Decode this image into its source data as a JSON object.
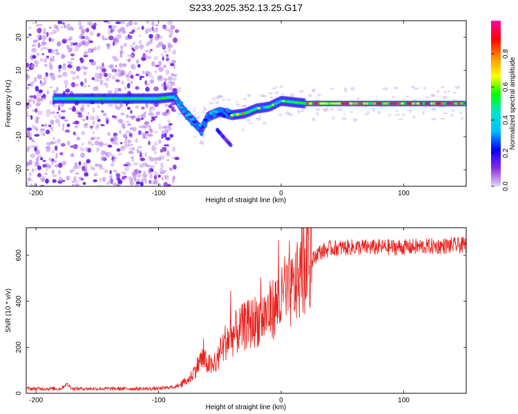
{
  "title": "S233.2025.352.13.25.G17",
  "chart_data": [
    {
      "type": "heatmap",
      "title": "S233.2025.352.13.25.G17",
      "xlabel": "Height of straight line (km)",
      "ylabel": "Frequency (Hz)",
      "xlim": [
        -208,
        151
      ],
      "ylim": [
        -25,
        25
      ],
      "xticks": [
        -200,
        -100,
        0,
        100
      ],
      "yticks": [
        -20,
        -10,
        0,
        10,
        20
      ],
      "colorbar": {
        "label": "Normalized spectral amplitude",
        "range": [
          0,
          1
        ],
        "ticks": [
          0.0,
          0.2,
          0.4,
          0.6,
          0.8
        ],
        "tick_labels": [
          "0.0",
          "0.2",
          "0.4",
          "0.6",
          "0.8"
        ],
        "colormap": [
          "#e6d6f5",
          "#8a2be2",
          "#0000ff",
          "#00bfff",
          "#00e5d0",
          "#00ff00",
          "#ffff00",
          "#ff8c00",
          "#ff0000",
          "#ff00a0"
        ]
      },
      "ridge": [
        {
          "x": -185,
          "freq": 1.5
        },
        {
          "x": -140,
          "freq": 1.5
        },
        {
          "x": -100,
          "freq": 1.5
        },
        {
          "x": -87,
          "freq": 2.0
        },
        {
          "x": -80,
          "freq": -2.0
        },
        {
          "x": -70,
          "freq": -6.0
        },
        {
          "x": -65,
          "freq": -8.0
        },
        {
          "x": -60,
          "freq": -4.0
        },
        {
          "x": -50,
          "freq": -2.5
        },
        {
          "x": -40,
          "freq": -3.5
        },
        {
          "x": -30,
          "freq": -3.0
        },
        {
          "x": -20,
          "freq": -1.5
        },
        {
          "x": -10,
          "freq": -1.0
        },
        {
          "x": 0,
          "freq": 0.8
        },
        {
          "x": 20,
          "freq": 0.0
        },
        {
          "x": 60,
          "freq": 0.0
        },
        {
          "x": 100,
          "freq": 0.0
        },
        {
          "x": 150,
          "freq": 0.0
        }
      ],
      "secondary_branch": [
        {
          "x": -52,
          "freq": -8.0
        },
        {
          "x": -45,
          "freq": -11.0
        },
        {
          "x": -40,
          "freq": -13.0
        }
      ],
      "noise_region_x": [
        -208,
        -85
      ]
    },
    {
      "type": "line",
      "xlabel": "Height of straight line (km)",
      "ylabel": "SNR (10 * v/v)",
      "xlim": [
        -208,
        151
      ],
      "ylim": [
        0,
        720
      ],
      "xticks": [
        -200,
        -100,
        0,
        100
      ],
      "yticks": [
        0,
        200,
        400,
        600
      ],
      "color": "#e8231f",
      "series": [
        {
          "name": "SNR",
          "envelope": [
            {
              "x": -208,
              "y": 20
            },
            {
              "x": -180,
              "y": 20
            },
            {
              "x": -175,
              "y": 40
            },
            {
              "x": -170,
              "y": 20
            },
            {
              "x": -100,
              "y": 20
            },
            {
              "x": -85,
              "y": 30
            },
            {
              "x": -75,
              "y": 60
            },
            {
              "x": -65,
              "y": 150
            },
            {
              "x": -55,
              "y": 110
            },
            {
              "x": -45,
              "y": 230
            },
            {
              "x": -30,
              "y": 290
            },
            {
              "x": -15,
              "y": 330
            },
            {
              "x": 0,
              "y": 400
            },
            {
              "x": 10,
              "y": 450
            },
            {
              "x": 20,
              "y": 540
            },
            {
              "x": 30,
              "y": 610
            },
            {
              "x": 40,
              "y": 630
            },
            {
              "x": 60,
              "y": 635
            },
            {
              "x": 100,
              "y": 635
            },
            {
              "x": 130,
              "y": 640
            },
            {
              "x": 151,
              "y": 645
            }
          ]
        }
      ]
    }
  ]
}
